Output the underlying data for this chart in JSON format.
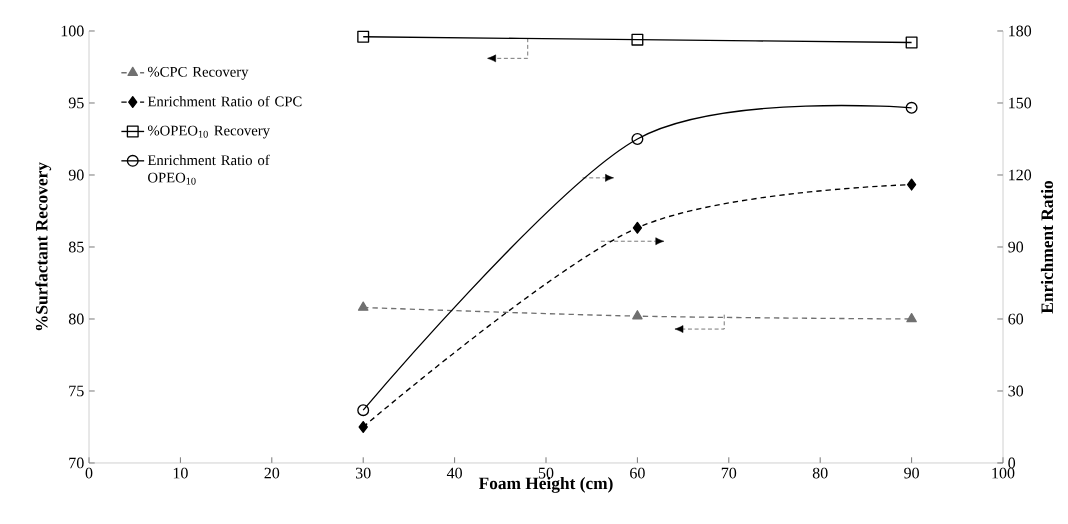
{
  "chart_data": {
    "type": "line",
    "xlabel": "Foam Height (cm)",
    "ylabel": "%Surfactant Recovery",
    "y2label": "Enrichment Ratio",
    "xlim": [
      0,
      100
    ],
    "xticks": [
      0,
      10,
      20,
      30,
      40,
      50,
      60,
      70,
      80,
      90,
      100
    ],
    "ylim": [
      70,
      100
    ],
    "yticks": [
      70,
      75,
      80,
      85,
      90,
      95,
      100
    ],
    "y2lim": [
      0,
      180
    ],
    "y2ticks": [
      0,
      30,
      60,
      90,
      120,
      150,
      180
    ],
    "grid": false,
    "legend": "top left",
    "series": [
      {
        "name": "%CPC Recovery",
        "color": "#707070",
        "x": [
          30,
          60,
          90
        ],
        "values": [
          80.8,
          80.2,
          80.0
        ],
        "marker": "triangle",
        "line_style": "dashed"
      },
      {
        "name": "Enrichment Ratio of CPC",
        "color": "#000000",
        "x": [
          30,
          60,
          90
        ],
        "values": [
          15,
          98,
          116
        ],
        "marker": "diamond",
        "line_style": "dashed",
        "axis": "y2"
      },
      {
        "name": "%OPEO$_{10}$ Recovery",
        "color": "#000000",
        "x": [
          30,
          60,
          90
        ],
        "values": [
          99.6,
          99.4,
          99.2
        ],
        "marker": "square",
        "line_style": "solid"
      },
      {
        "name": "Enrichment Ratio of OPEO$_{10}$",
        "color": "#000000",
        "x": [
          30,
          60,
          90
        ],
        "values": [
          22,
          135,
          148
        ],
        "marker": "circle",
        "line_style": "solid",
        "axis": "y2"
      }
    ]
  }
}
